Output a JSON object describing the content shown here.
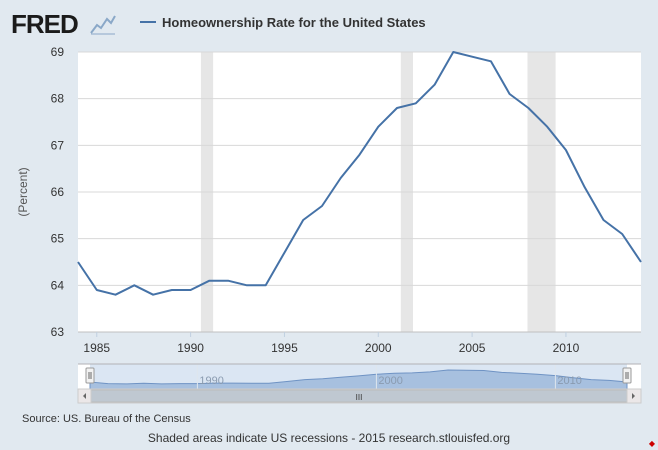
{
  "header": {
    "logo_text": "FRED",
    "logo_icon": "line-chart-icon"
  },
  "chart_data": {
    "type": "line",
    "title": "",
    "legend": [
      {
        "name": "Homeownership Rate for the United States",
        "color": "#4572a7"
      }
    ],
    "ylabel": "(Percent)",
    "xlabel": "",
    "xlim": [
      1984,
      2014
    ],
    "ylim": [
      63,
      69
    ],
    "yticks": [
      63,
      64,
      65,
      66,
      67,
      68,
      69
    ],
    "xticks": [
      1985,
      1990,
      1995,
      2000,
      2005,
      2010
    ],
    "grid": true,
    "series": [
      {
        "name": "Homeownership Rate for the United States",
        "color": "#4572a7",
        "x": [
          1984,
          1985,
          1986,
          1987,
          1988,
          1989,
          1990,
          1991,
          1992,
          1993,
          1994,
          1995,
          1996,
          1997,
          1998,
          1999,
          2000,
          2001,
          2002,
          2003,
          2004,
          2005,
          2006,
          2007,
          2008,
          2009,
          2010,
          2011,
          2012,
          2013,
          2014
        ],
        "y": [
          64.5,
          63.9,
          63.8,
          64.0,
          63.8,
          63.9,
          63.9,
          64.1,
          64.1,
          64.0,
          64.0,
          64.7,
          65.4,
          65.7,
          66.3,
          66.8,
          67.4,
          67.8,
          67.9,
          68.3,
          69.0,
          68.9,
          68.8,
          68.1,
          67.8,
          67.4,
          66.9,
          66.1,
          65.4,
          65.1,
          64.5
        ]
      }
    ],
    "recessions": [
      [
        1990.55,
        1991.2
      ],
      [
        2001.2,
        2001.85
      ],
      [
        2007.95,
        2009.45
      ]
    ],
    "navigator": {
      "xticks": [
        1990,
        2000,
        2010
      ],
      "scrollbar_grip": "III"
    }
  },
  "footer": {
    "source": "Source: US. Bureau of the Census",
    "note": "Shaded areas indicate US recessions - 2015 research.stlouisfed.org"
  }
}
